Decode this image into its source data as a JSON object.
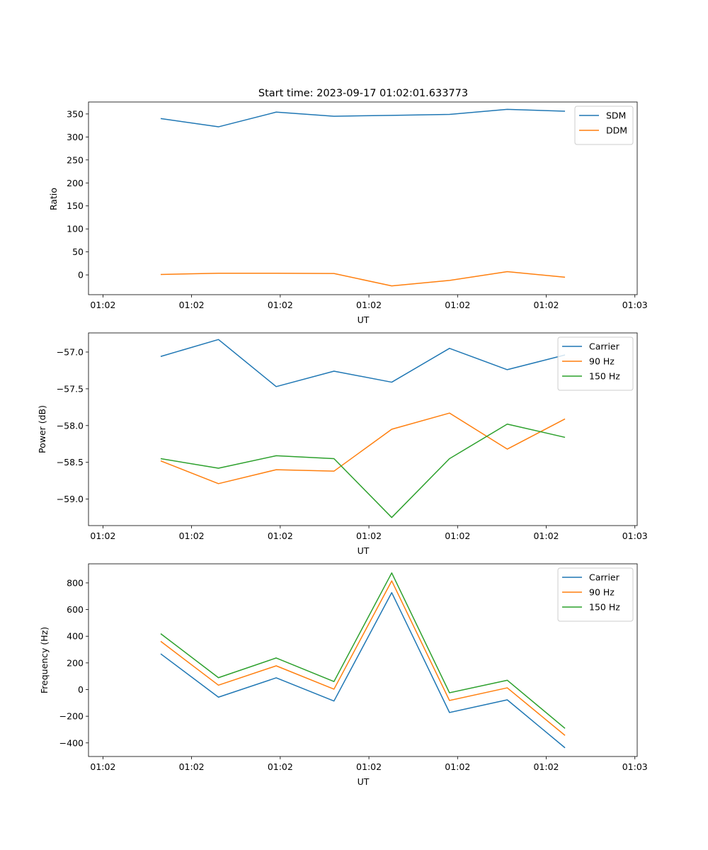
{
  "chart_data": [
    {
      "type": "line",
      "title": "Start time: 2023-09-17 01:02:01.633773",
      "xlabel": "UT",
      "ylabel": "Ratio",
      "x": [
        1,
        2,
        3,
        4,
        5,
        6,
        7,
        8
      ],
      "x_tick_values": [
        0,
        1.535,
        3.07,
        4.605,
        6.14,
        7.675,
        9.21
      ],
      "x_tick_labels": [
        "01:02",
        "01:02",
        "01:02",
        "01:02",
        "01:02",
        "01:02",
        "01:03"
      ],
      "xlim": [
        -0.25,
        9.25
      ],
      "ylim": [
        -43,
        376
      ],
      "y_ticks": [
        0,
        50,
        100,
        150,
        200,
        250,
        300,
        350
      ],
      "y_tick_labels": [
        "0",
        "50",
        "100",
        "150",
        "200",
        "250",
        "300",
        "350"
      ],
      "legend_position": "top-right",
      "series": [
        {
          "name": "SDM",
          "color": "#1f77b4",
          "values": [
            340,
            322,
            354,
            345,
            347,
            349,
            360,
            356
          ]
        },
        {
          "name": "DDM",
          "color": "#ff7f0e",
          "values": [
            1,
            3.5,
            3.5,
            3,
            -24,
            -12,
            7,
            -5
          ]
        }
      ]
    },
    {
      "type": "line",
      "title": "",
      "xlabel": "UT",
      "ylabel": "Power (dB)",
      "x": [
        1,
        2,
        3,
        4,
        5,
        6,
        7,
        8
      ],
      "x_tick_values": [
        0,
        1.535,
        3.07,
        4.605,
        6.14,
        7.675,
        9.21
      ],
      "x_tick_labels": [
        "01:02",
        "01:02",
        "01:02",
        "01:02",
        "01:02",
        "01:02",
        "01:03"
      ],
      "xlim": [
        -0.25,
        9.25
      ],
      "ylim": [
        -59.36,
        -56.74
      ],
      "y_ticks": [
        -59.0,
        -58.5,
        -58.0,
        -57.5,
        -57.0
      ],
      "y_tick_labels": [
        "−59.0",
        "−58.5",
        "−58.0",
        "−57.5",
        "−57.0"
      ],
      "legend_position": "top-right",
      "series": [
        {
          "name": "Carrier",
          "color": "#1f77b4",
          "values": [
            -57.06,
            -56.83,
            -57.47,
            -57.26,
            -57.41,
            -56.95,
            -57.24,
            -57.04
          ]
        },
        {
          "name": "90 Hz",
          "color": "#ff7f0e",
          "values": [
            -58.48,
            -58.79,
            -58.6,
            -58.62,
            -58.05,
            -57.83,
            -58.32,
            -57.91
          ]
        },
        {
          "name": "150 Hz",
          "color": "#2ca02c",
          "values": [
            -58.45,
            -58.58,
            -58.41,
            -58.45,
            -59.25,
            -58.45,
            -57.98,
            -58.16
          ]
        }
      ]
    },
    {
      "type": "line",
      "title": "",
      "xlabel": "UT",
      "ylabel": "Frequency (Hz)",
      "x": [
        1,
        2,
        3,
        4,
        5,
        6,
        7,
        8
      ],
      "x_tick_values": [
        0,
        1.535,
        3.07,
        4.605,
        6.14,
        7.675,
        9.21
      ],
      "x_tick_labels": [
        "01:02",
        "01:02",
        "01:02",
        "01:02",
        "01:02",
        "01:02",
        "01:03"
      ],
      "xlim": [
        -0.25,
        9.25
      ],
      "ylim": [
        -502,
        943
      ],
      "y_ticks": [
        -400,
        -200,
        0,
        200,
        400,
        600,
        800
      ],
      "y_tick_labels": [
        "−400",
        "−200",
        "0",
        "200",
        "400",
        "600",
        "800"
      ],
      "legend_position": "top-right",
      "series": [
        {
          "name": "Carrier",
          "color": "#1f77b4",
          "values": [
            268,
            -57,
            88,
            -86,
            727,
            -172,
            -77,
            -437
          ]
        },
        {
          "name": "90 Hz",
          "color": "#ff7f0e",
          "values": [
            362,
            33,
            178,
            3,
            815,
            -82,
            13,
            -344
          ]
        },
        {
          "name": "150 Hz",
          "color": "#2ca02c",
          "values": [
            419,
            89,
            237,
            60,
            875,
            -24,
            70,
            -291
          ]
        }
      ]
    }
  ]
}
